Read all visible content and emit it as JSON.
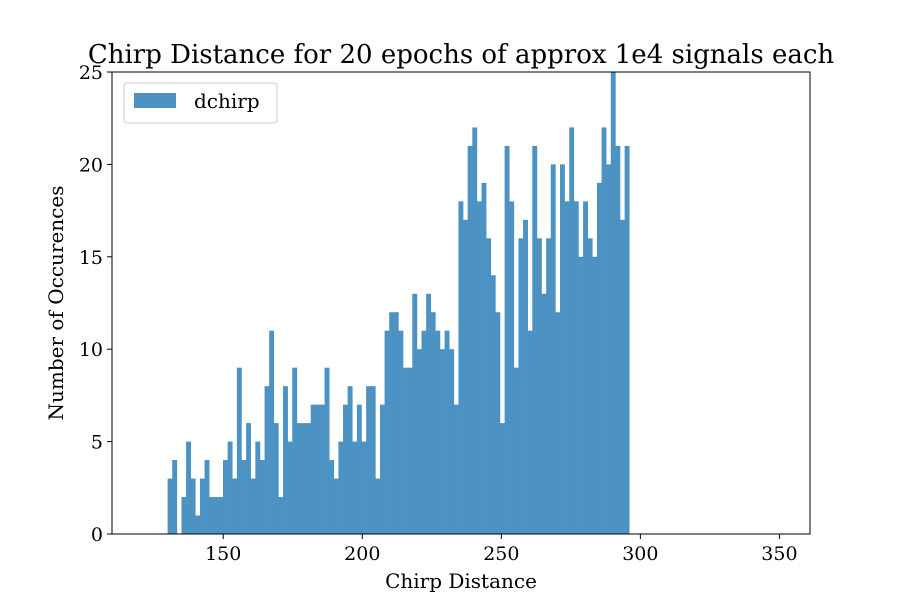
{
  "chart_data": {
    "type": "bar",
    "title": "Chirp Distance for 20 epochs of approx 1e4 signals each",
    "xlabel": "Chirp Distance",
    "ylabel": "Number of Occurences",
    "xlim": [
      110,
      361
    ],
    "ylim": [
      0,
      25
    ],
    "bin_start": 130,
    "bin_width": 1.66,
    "xticks": [
      150,
      200,
      250,
      300,
      350
    ],
    "yticks": [
      0,
      5,
      10,
      15,
      20,
      25
    ],
    "grid": false,
    "legend_position": "top-left",
    "series": [
      {
        "name": "dchirp",
        "color": "#4c92c3",
        "values": [
          3,
          4,
          0,
          2,
          5,
          3,
          1,
          3,
          4,
          2,
          2,
          2,
          4,
          5,
          3,
          9,
          4,
          6,
          3,
          5,
          4,
          8,
          11,
          6,
          2,
          8,
          5,
          9,
          6,
          6,
          6,
          7,
          7,
          7,
          9,
          4,
          3,
          5,
          7,
          8,
          5,
          7,
          5,
          8,
          8,
          3,
          7,
          11,
          12,
          12,
          11,
          9,
          9,
          13,
          10,
          11,
          13,
          12,
          11,
          10,
          11,
          10,
          7,
          18,
          17,
          21,
          22,
          18,
          19,
          16,
          14,
          12,
          6,
          21,
          18,
          9,
          16,
          17,
          11,
          21,
          16,
          13,
          16,
          20,
          12,
          20,
          18,
          22,
          18,
          15,
          18,
          16,
          15,
          19,
          22,
          20,
          25,
          21,
          17,
          21
        ]
      }
    ]
  }
}
